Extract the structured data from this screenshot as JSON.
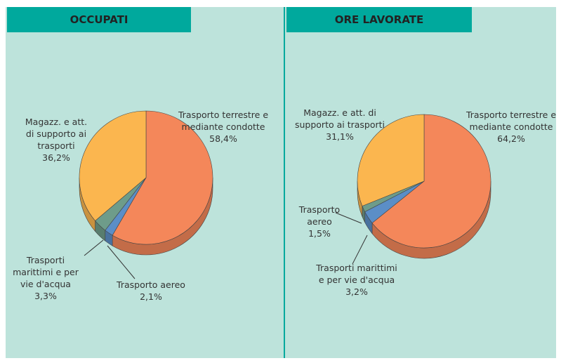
{
  "chart_data": [
    {
      "type": "pie",
      "title": "OCCUPATI",
      "categories": [
        "Trasporto terrestre e mediante condotte",
        "Trasporto aereo",
        "Trasporti marittimi e per vie d'acqua",
        "Magazz. e att. di supporto ai trasporti"
      ],
      "values": [
        58.4,
        2.1,
        3.3,
        36.2
      ],
      "value_labels": [
        "58,4%",
        "2,1%",
        "3,3%",
        "36,2%"
      ],
      "colors": [
        "#f4875a",
        "#5b8ec7",
        "#6e9c8a",
        "#fbb64f"
      ]
    },
    {
      "type": "pie",
      "title": "ORE LAVORATE",
      "categories": [
        "Trasporto terrestre e mediante condotte",
        "Trasporti marittimi e per vie d'acqua",
        "Trasporto aereo",
        "Magazz. e att. di supporto ai trasporti"
      ],
      "values": [
        64.2,
        3.2,
        1.5,
        31.1
      ],
      "value_labels": [
        "64,2%",
        "3,2%",
        "1,5%",
        "31,1%"
      ],
      "colors": [
        "#f4875a",
        "#5b8ec7",
        "#6e9c8a",
        "#fbb64f"
      ]
    }
  ]
}
